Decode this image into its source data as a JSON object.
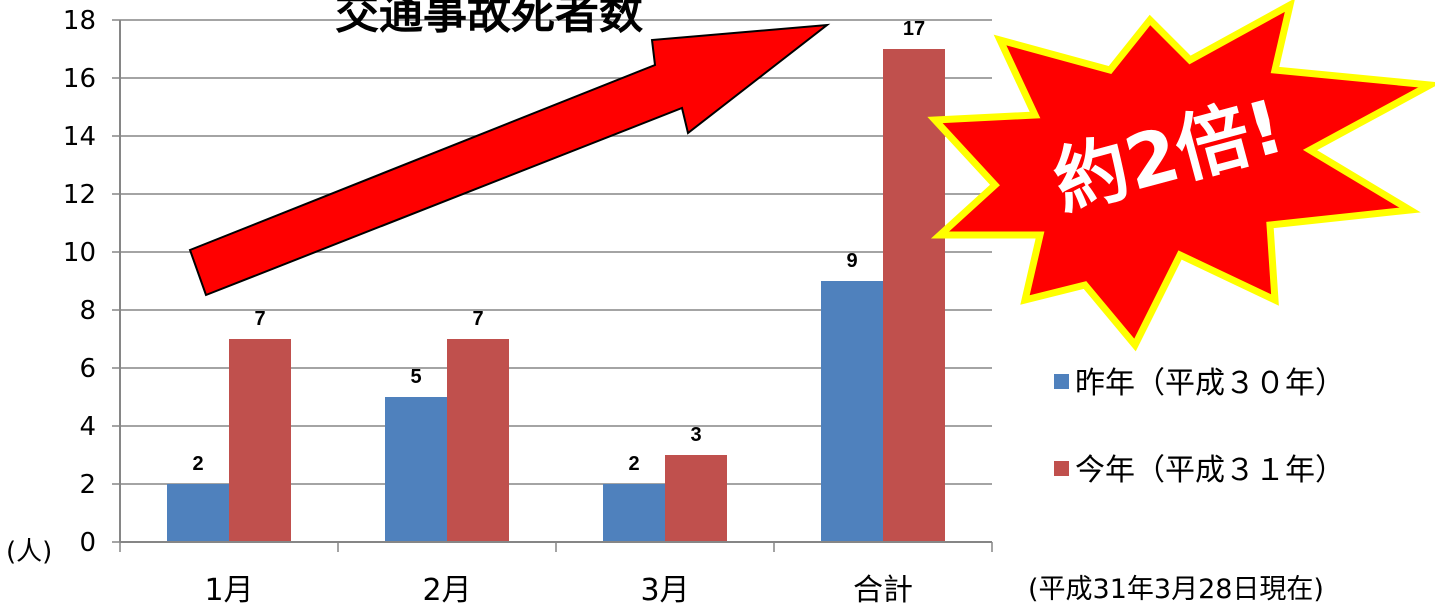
{
  "chart_data": {
    "type": "bar",
    "title": "交通事故死者数",
    "unit_label": "(人)",
    "categories": [
      "1月",
      "2月",
      "3月",
      "合計"
    ],
    "series": [
      {
        "name": "昨年（平成３０年）",
        "color": "#4f81bd",
        "values": [
          2,
          5,
          2,
          9
        ]
      },
      {
        "name": "今年（平成３１年）",
        "color": "#c0504d",
        "values": [
          7,
          7,
          3,
          17
        ]
      }
    ],
    "ylim": [
      0,
      18
    ],
    "yticks": [
      0,
      2,
      4,
      6,
      8,
      10,
      12,
      14,
      16,
      18
    ],
    "grid": true,
    "legend_position": "right",
    "annotations": {
      "burst_text": "約2倍!",
      "burst_color": "#ff0000",
      "burst_outline_color": "#ffff00",
      "arrow_color": "#ff0000",
      "note": "(平成31年3月28日現在)"
    }
  }
}
